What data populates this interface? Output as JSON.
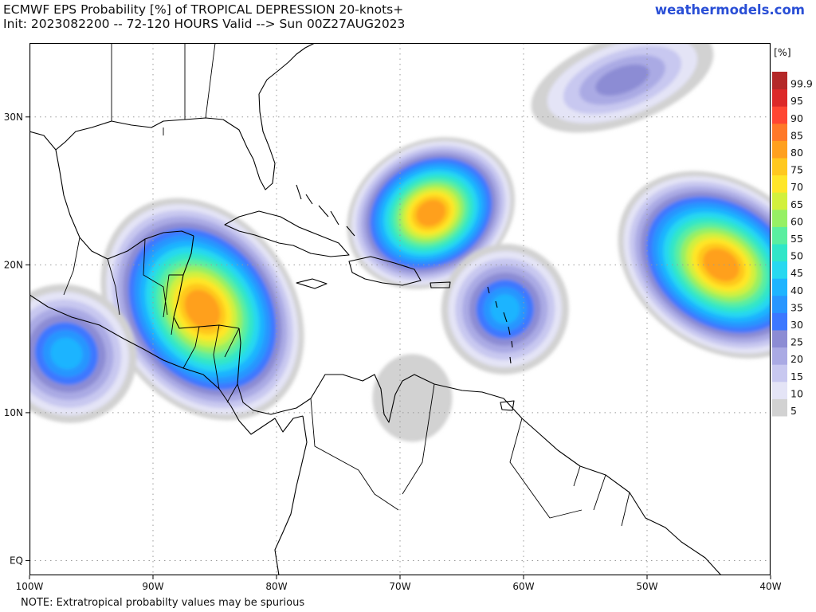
{
  "header": {
    "title_line1": "ECMWF EPS Probability [%] of TROPICAL DEPRESSION 20-knots+",
    "title_line2": "Init: 2023082200 -- 72-120 HOURS Valid --> Sun 00Z27AUG2023",
    "site": "weathermodels.com"
  },
  "footer": {
    "note": "NOTE: Extratropical probabilty values may be spurious"
  },
  "map": {
    "lon_labels": [
      "100W",
      "90W",
      "80W",
      "70W",
      "60W",
      "50W",
      "40W"
    ],
    "lat_labels": [
      "30N",
      "20N",
      "10N",
      "EQ"
    ],
    "lon_values": [
      -100,
      -90,
      -80,
      -70,
      -60,
      -50,
      -40
    ],
    "lat_values": [
      30,
      20,
      10,
      0
    ],
    "extent": {
      "lon_min": -100,
      "lon_max": -40,
      "lat_min": -1,
      "lat_max": 35
    }
  },
  "colorbar": {
    "unit_label": "[%]",
    "levels": [
      "5",
      "10",
      "15",
      "20",
      "25",
      "30",
      "35",
      "40",
      "45",
      "50",
      "55",
      "60",
      "65",
      "70",
      "75",
      "80",
      "85",
      "90",
      "95",
      "99.9"
    ],
    "colors": [
      "#d2d2d2",
      "#e4e4f6",
      "#c8c8f0",
      "#aaaae4",
      "#8c8cd4",
      "#3c78ff",
      "#2896ff",
      "#1eb4ff",
      "#28d8f0",
      "#30e6c8",
      "#5aeea0",
      "#96f064",
      "#d2f03c",
      "#ffe628",
      "#ffc81e",
      "#ffa01e",
      "#ff7828",
      "#ff4632",
      "#dc2828",
      "#b42828"
    ]
  },
  "probability_areas": [
    {
      "region": "Yucatan / Western Caribbean",
      "center": [
        -86,
        17
      ],
      "max": 80
    },
    {
      "region": "East Pacific off Central America",
      "center": [
        -97,
        14
      ],
      "max": 40
    },
    {
      "region": "North of Hispaniola",
      "center": [
        -67.5,
        23.5
      ],
      "max": 80
    },
    {
      "region": "Lesser Antilles",
      "center": [
        -61.5,
        17
      ],
      "max": 40
    },
    {
      "region": "Central Atlantic",
      "center": [
        -44,
        20
      ],
      "max": 80
    },
    {
      "region": "Northeast of Bermuda",
      "center": [
        -52,
        32.5
      ],
      "max": 25
    },
    {
      "region": "Venezuela coast",
      "center": [
        -69,
        11
      ],
      "max": 5
    }
  ]
}
